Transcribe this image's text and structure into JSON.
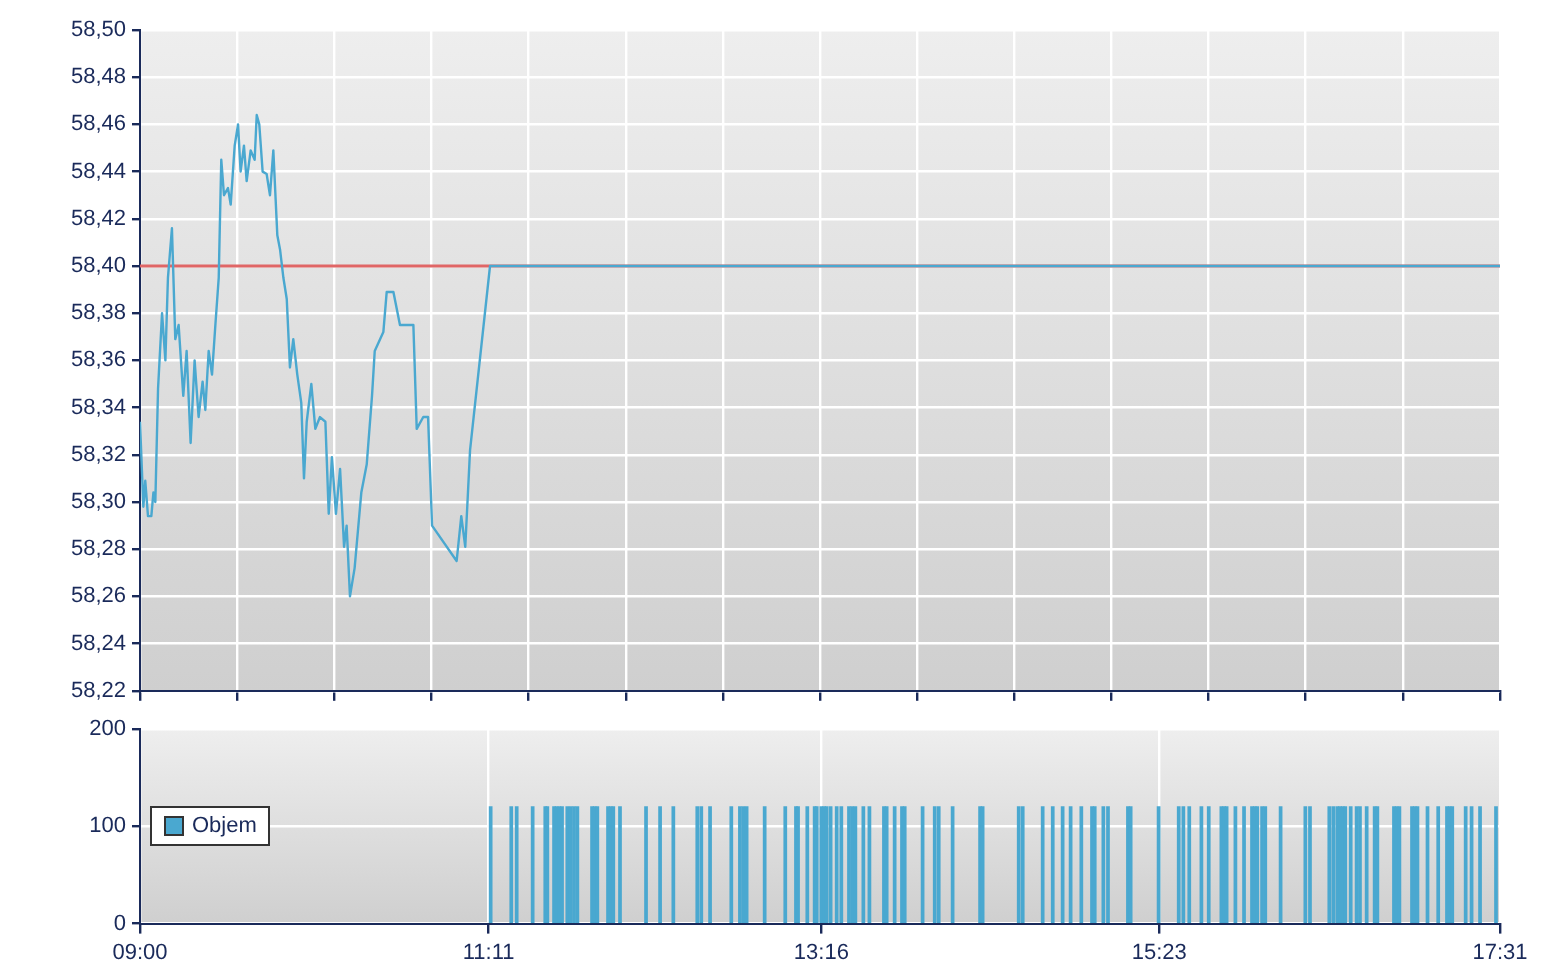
{
  "chart_data": [
    {
      "type": "line",
      "xlim": [
        9,
        17.517
      ],
      "ylim": [
        58.22,
        58.5
      ],
      "xticks": [
        {
          "value": 9,
          "label": null
        },
        {
          "value": 9.608,
          "label": null
        },
        {
          "value": 10.217,
          "label": null
        },
        {
          "value": 10.825,
          "label": null
        },
        {
          "value": 11.433,
          "label": null
        },
        {
          "value": 12.042,
          "label": null
        },
        {
          "value": 12.65,
          "label": null
        },
        {
          "value": 13.258,
          "label": null
        },
        {
          "value": 13.867,
          "label": null
        },
        {
          "value": 14.475,
          "label": null
        },
        {
          "value": 15.083,
          "label": null
        },
        {
          "value": 15.692,
          "label": null
        },
        {
          "value": 16.3,
          "label": null
        },
        {
          "value": 16.908,
          "label": null
        },
        {
          "value": 17.517,
          "label": null
        }
      ],
      "yticks": [
        {
          "value": 58.22,
          "label": "58,22"
        },
        {
          "value": 58.24,
          "label": "58,24"
        },
        {
          "value": 58.26,
          "label": "58,26"
        },
        {
          "value": 58.28,
          "label": "58,28"
        },
        {
          "value": 58.3,
          "label": "58,30"
        },
        {
          "value": 58.32,
          "label": "58,32"
        },
        {
          "value": 58.34,
          "label": "58,34"
        },
        {
          "value": 58.36,
          "label": "58,36"
        },
        {
          "value": 58.38,
          "label": "58,38"
        },
        {
          "value": 58.4,
          "label": "58,40"
        },
        {
          "value": 58.42,
          "label": "58,42"
        },
        {
          "value": 58.44,
          "label": "58,44"
        },
        {
          "value": 58.46,
          "label": "58,46"
        },
        {
          "value": 58.48,
          "label": "58,48"
        },
        {
          "value": 58.5,
          "label": "58,50"
        }
      ],
      "tick_labels": "y",
      "grid": true,
      "ref_lines": [
        {
          "axis": "y",
          "value": 58.4,
          "color": "#e06666"
        }
      ],
      "x": [
        9.0,
        9.021,
        9.033,
        9.05,
        9.071,
        9.084,
        9.096,
        9.113,
        9.138,
        9.159,
        9.175,
        9.2,
        9.221,
        9.242,
        9.271,
        9.292,
        9.317,
        9.342,
        9.367,
        9.392,
        9.409,
        9.43,
        9.451,
        9.472,
        9.493,
        9.509,
        9.526,
        9.551,
        9.568,
        9.593,
        9.614,
        9.63,
        9.651,
        9.668,
        9.693,
        9.718,
        9.731,
        9.747,
        9.768,
        9.793,
        9.814,
        9.835,
        9.86,
        9.877,
        9.898,
        9.919,
        9.939,
        9.96,
        9.985,
        10.01,
        10.027,
        10.044,
        10.073,
        10.098,
        10.127,
        10.161,
        10.182,
        10.202,
        10.227,
        10.253,
        10.278,
        10.294,
        10.315,
        10.344,
        10.386,
        10.42,
        10.453,
        10.47,
        10.524,
        10.545,
        10.587,
        10.628,
        10.712,
        10.733,
        10.774,
        10.804,
        10.829,
        10.983,
        11.012,
        11.037,
        11.067,
        11.192,
        17.517
      ],
      "series": [
        {
          "color": "#4aa8d0",
          "values": [
            58.334,
            58.298,
            58.309,
            58.294,
            58.294,
            58.304,
            58.3,
            58.348,
            58.38,
            58.36,
            58.395,
            58.416,
            58.369,
            58.375,
            58.345,
            58.364,
            58.325,
            58.36,
            58.336,
            58.351,
            58.339,
            58.364,
            58.354,
            58.375,
            58.395,
            58.445,
            58.43,
            58.433,
            58.426,
            58.451,
            58.46,
            58.44,
            58.451,
            58.436,
            58.449,
            58.445,
            58.464,
            58.46,
            58.44,
            58.439,
            58.43,
            58.449,
            58.413,
            58.407,
            58.395,
            58.386,
            58.357,
            58.369,
            58.354,
            58.342,
            58.31,
            58.334,
            58.35,
            58.331,
            58.336,
            58.334,
            58.295,
            58.319,
            58.295,
            58.314,
            58.281,
            58.29,
            58.26,
            58.272,
            58.304,
            58.316,
            58.345,
            58.364,
            58.372,
            58.389,
            58.389,
            58.375,
            58.375,
            58.331,
            58.336,
            58.336,
            58.29,
            58.275,
            58.294,
            58.281,
            58.322,
            58.4,
            58.4
          ]
        }
      ]
    },
    {
      "type": "bar",
      "xlim": [
        9,
        17.517
      ],
      "ylim": [
        0,
        200
      ],
      "xticks": [
        {
          "value": 9,
          "label": "09:00"
        },
        {
          "value": 11.183,
          "label": "11:11"
        },
        {
          "value": 13.267,
          "label": "13:16"
        },
        {
          "value": 15.383,
          "label": "15:23"
        },
        {
          "value": 17.517,
          "label": "17:31"
        }
      ],
      "yticks": [
        0,
        100,
        200
      ],
      "grid": true,
      "legend": "left",
      "x": [
        11.196,
        11.325,
        11.359,
        11.459,
        11.538,
        11.551,
        11.593,
        11.609,
        11.626,
        11.643,
        11.676,
        11.697,
        11.718,
        11.739,
        11.831,
        11.847,
        11.864,
        11.931,
        11.948,
        11.964,
        12.006,
        12.169,
        12.257,
        12.34,
        12.49,
        12.515,
        12.57,
        12.703,
        12.757,
        12.778,
        12.799,
        12.912,
        13.041,
        13.108,
        13.121,
        13.179,
        13.225,
        13.238,
        13.267,
        13.284,
        13.3,
        13.325,
        13.363,
        13.392,
        13.44,
        13.46,
        13.48,
        13.53,
        13.568,
        13.659,
        13.676,
        13.726,
        13.772,
        13.789,
        13.901,
        13.977,
        14.002,
        14.089,
        14.261,
        14.277,
        14.503,
        14.528,
        14.653,
        14.716,
        14.778,
        14.828,
        14.895,
        14.962,
        14.979,
        15.033,
        15.062,
        15.187,
        15.204,
        15.379,
        15.505,
        15.534,
        15.571,
        15.647,
        15.693,
        15.772,
        15.789,
        15.805,
        15.86,
        15.914,
        15.964,
        15.981,
        15.997,
        16.027,
        16.047,
        16.143,
        16.298,
        16.327,
        16.448,
        16.473,
        16.498,
        16.515,
        16.532,
        16.548,
        16.582,
        16.619,
        16.64,
        16.682,
        16.732,
        16.749,
        16.853,
        16.87,
        16.887,
        16.966,
        16.983,
        17.0,
        17.063,
        17.13,
        17.185,
        17.202,
        17.218,
        17.302,
        17.339,
        17.392,
        17.492
      ],
      "series": [
        {
          "name": "Objem",
          "color": "#4aa8d0",
          "values": [
            120,
            120,
            120,
            120,
            120,
            120,
            120,
            120,
            120,
            120,
            120,
            120,
            120,
            120,
            120,
            120,
            120,
            120,
            120,
            120,
            120,
            120,
            120,
            120,
            120,
            120,
            120,
            120,
            120,
            120,
            120,
            120,
            120,
            120,
            120,
            120,
            120,
            120,
            120,
            120,
            120,
            120,
            120,
            120,
            120,
            120,
            120,
            120,
            120,
            120,
            120,
            120,
            120,
            120,
            120,
            120,
            120,
            120,
            120,
            120,
            120,
            120,
            120,
            120,
            120,
            120,
            120,
            120,
            120,
            120,
            120,
            120,
            120,
            120,
            120,
            120,
            120,
            120,
            120,
            120,
            120,
            120,
            120,
            120,
            120,
            120,
            120,
            120,
            120,
            120,
            120,
            120,
            120,
            120,
            120,
            120,
            120,
            120,
            120,
            120,
            120,
            120,
            120,
            120,
            120,
            120,
            120,
            120,
            120,
            120,
            120,
            120,
            120,
            120,
            120,
            120,
            120,
            120,
            120
          ]
        }
      ]
    }
  ]
}
